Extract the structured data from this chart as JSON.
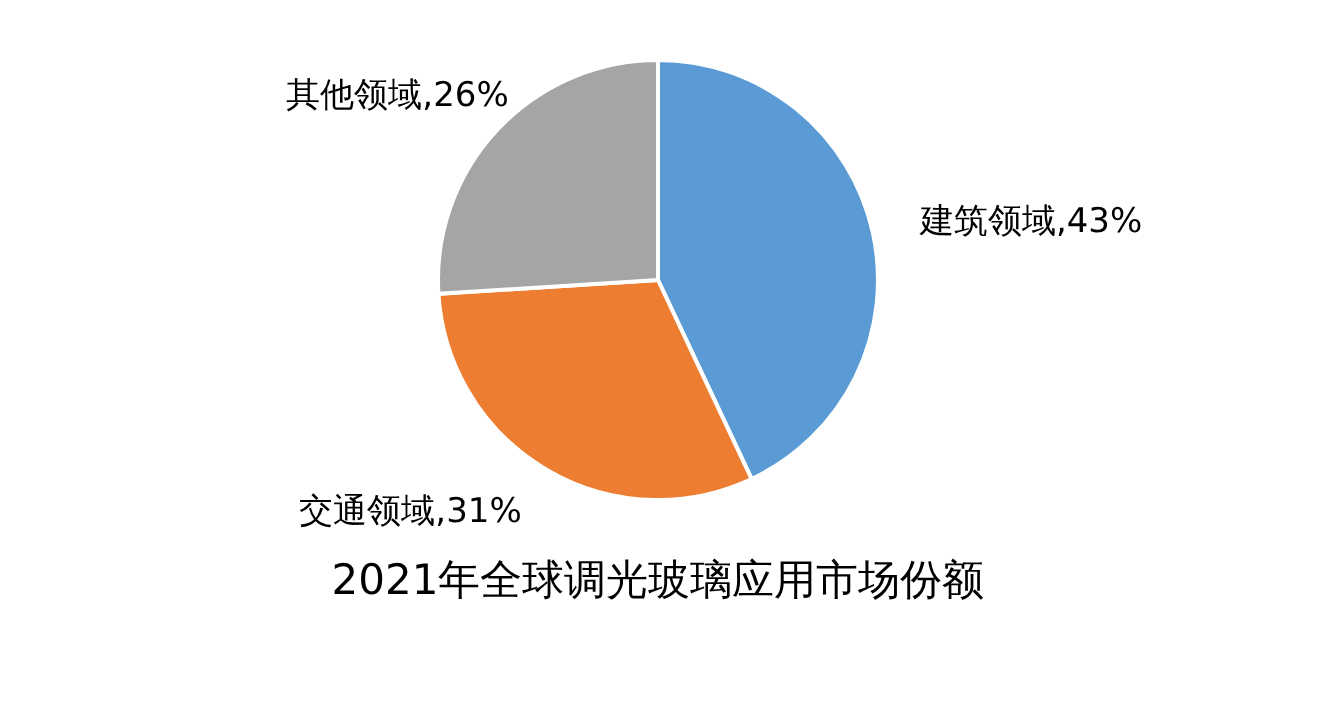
{
  "chart_data": {
    "type": "pie",
    "title": "2021年全球调光玻璃应用市场份额",
    "categories": [
      "建筑领域",
      "交通领域",
      "其他领域"
    ],
    "values": [
      43,
      31,
      26
    ],
    "colors": [
      "#5b9bd5",
      "#ed7d31",
      "#a5a5a5"
    ],
    "value_labels": [
      "43%",
      "31%",
      "26%"
    ]
  }
}
